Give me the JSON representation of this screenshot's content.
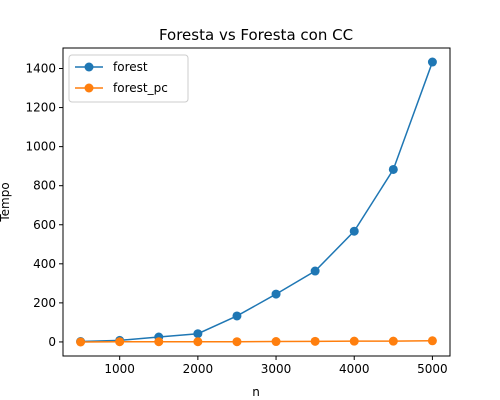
{
  "chart_data": {
    "type": "line",
    "title": "Foresta vs Foresta con CC",
    "xlabel": "n",
    "ylabel": "Tempo",
    "xlim": [
      275,
      5225
    ],
    "ylim": [
      -72,
      1505
    ],
    "xticks": [
      1000,
      2000,
      3000,
      4000,
      5000
    ],
    "yticks": [
      0,
      200,
      400,
      600,
      800,
      1000,
      1200,
      1400
    ],
    "grid": false,
    "legend_position": "top-left",
    "x": [
      500,
      1000,
      1500,
      2000,
      2500,
      3000,
      3500,
      4000,
      4500,
      5000
    ],
    "series": [
      {
        "name": "forest",
        "color": "#1f77b4",
        "marker": "circle",
        "values": [
          2,
          8,
          25,
          42,
          133,
          245,
          363,
          567,
          883,
          1433
        ]
      },
      {
        "name": "forest_pc",
        "color": "#ff7f0e",
        "marker": "circle",
        "values": [
          0,
          1,
          1,
          1,
          1,
          2,
          3,
          4,
          4,
          6
        ]
      }
    ]
  }
}
